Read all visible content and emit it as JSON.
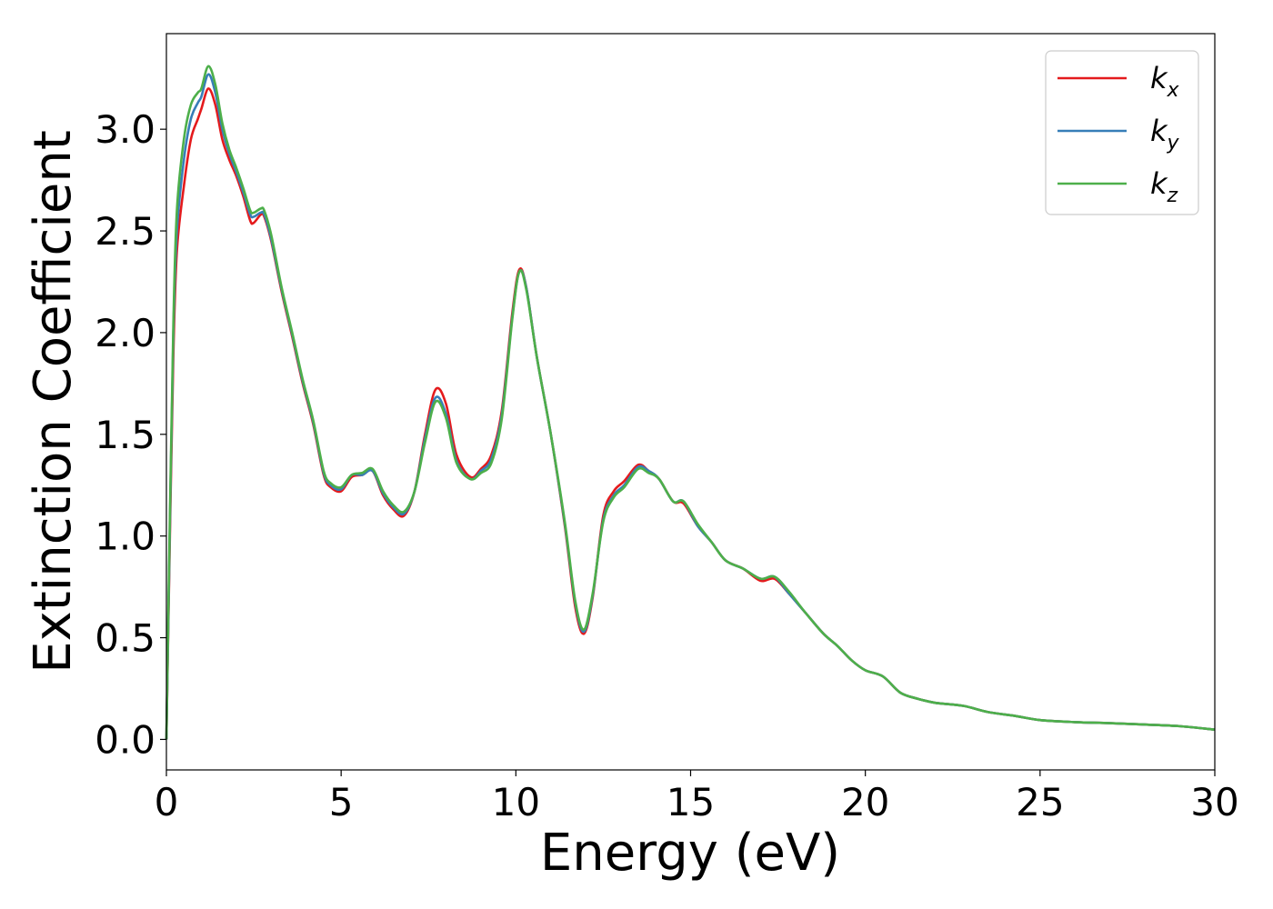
{
  "chart_data": {
    "type": "line",
    "xlabel": "Energy (eV)",
    "ylabel": "Extinction Coefficient",
    "xlim": [
      0,
      30
    ],
    "ylim": [
      -0.15,
      3.47
    ],
    "xticks": [
      0,
      5,
      10,
      15,
      20,
      25,
      30
    ],
    "xtick_labels": [
      "0",
      "5",
      "10",
      "15",
      "20",
      "25",
      "30"
    ],
    "yticks": [
      0.0,
      0.5,
      1.0,
      1.5,
      2.0,
      2.5,
      3.0
    ],
    "ytick_labels": [
      "0.0",
      "0.5",
      "1.0",
      "1.5",
      "2.0",
      "2.5",
      "3.0"
    ],
    "grid": false,
    "legend_position": "top-right",
    "series": [
      {
        "name": "k",
        "subscript": "x",
        "color": "#e41a1c",
        "points": [
          [
            0,
            0
          ],
          [
            0.1,
            1.0
          ],
          [
            0.2,
            1.9
          ],
          [
            0.3,
            2.4
          ],
          [
            0.5,
            2.72
          ],
          [
            0.7,
            2.95
          ],
          [
            0.9,
            3.05
          ],
          [
            1.0,
            3.1
          ],
          [
            1.2,
            3.2
          ],
          [
            1.4,
            3.12
          ],
          [
            1.6,
            2.95
          ],
          [
            1.8,
            2.85
          ],
          [
            2.0,
            2.77
          ],
          [
            2.2,
            2.67
          ],
          [
            2.4,
            2.55
          ],
          [
            2.5,
            2.54
          ],
          [
            2.7,
            2.58
          ],
          [
            2.8,
            2.57
          ],
          [
            3.0,
            2.45
          ],
          [
            3.3,
            2.2
          ],
          [
            3.6,
            1.98
          ],
          [
            3.9,
            1.75
          ],
          [
            4.2,
            1.55
          ],
          [
            4.5,
            1.3
          ],
          [
            4.7,
            1.24
          ],
          [
            5.0,
            1.22
          ],
          [
            5.3,
            1.29
          ],
          [
            5.6,
            1.3
          ],
          [
            5.9,
            1.32
          ],
          [
            6.2,
            1.2
          ],
          [
            6.5,
            1.13
          ],
          [
            6.8,
            1.1
          ],
          [
            7.1,
            1.22
          ],
          [
            7.4,
            1.5
          ],
          [
            7.7,
            1.72
          ],
          [
            8.0,
            1.65
          ],
          [
            8.3,
            1.4
          ],
          [
            8.7,
            1.29
          ],
          [
            9.0,
            1.33
          ],
          [
            9.3,
            1.4
          ],
          [
            9.6,
            1.62
          ],
          [
            9.9,
            2.1
          ],
          [
            10.1,
            2.31
          ],
          [
            10.3,
            2.22
          ],
          [
            10.6,
            1.88
          ],
          [
            11.0,
            1.5
          ],
          [
            11.4,
            1.05
          ],
          [
            11.7,
            0.65
          ],
          [
            11.95,
            0.52
          ],
          [
            12.2,
            0.7
          ],
          [
            12.5,
            1.1
          ],
          [
            12.8,
            1.22
          ],
          [
            13.1,
            1.27
          ],
          [
            13.5,
            1.35
          ],
          [
            13.8,
            1.32
          ],
          [
            14.1,
            1.28
          ],
          [
            14.5,
            1.17
          ],
          [
            14.8,
            1.16
          ],
          [
            15.2,
            1.05
          ],
          [
            15.6,
            0.97
          ],
          [
            16.0,
            0.88
          ],
          [
            16.5,
            0.84
          ],
          [
            17.0,
            0.78
          ],
          [
            17.4,
            0.79
          ],
          [
            17.8,
            0.72
          ],
          [
            18.3,
            0.62
          ],
          [
            18.8,
            0.52
          ],
          [
            19.2,
            0.46
          ],
          [
            19.6,
            0.39
          ],
          [
            20.0,
            0.34
          ],
          [
            20.5,
            0.31
          ],
          [
            21.0,
            0.23
          ],
          [
            21.5,
            0.2
          ],
          [
            22.0,
            0.18
          ],
          [
            22.8,
            0.165
          ],
          [
            23.5,
            0.135
          ],
          [
            24.3,
            0.115
          ],
          [
            25.0,
            0.095
          ],
          [
            26.0,
            0.085
          ],
          [
            27.0,
            0.08
          ],
          [
            28.0,
            0.073
          ],
          [
            29.0,
            0.065
          ],
          [
            30.0,
            0.048
          ]
        ]
      },
      {
        "name": "k",
        "subscript": "y",
        "color": "#377eb8",
        "points": [
          [
            0,
            0
          ],
          [
            0.1,
            1.05
          ],
          [
            0.2,
            2.0
          ],
          [
            0.3,
            2.5
          ],
          [
            0.5,
            2.85
          ],
          [
            0.7,
            3.05
          ],
          [
            0.9,
            3.13
          ],
          [
            1.0,
            3.16
          ],
          [
            1.2,
            3.27
          ],
          [
            1.4,
            3.18
          ],
          [
            1.6,
            3.0
          ],
          [
            1.8,
            2.88
          ],
          [
            2.0,
            2.79
          ],
          [
            2.2,
            2.69
          ],
          [
            2.4,
            2.58
          ],
          [
            2.5,
            2.57
          ],
          [
            2.7,
            2.59
          ],
          [
            2.8,
            2.58
          ],
          [
            3.0,
            2.46
          ],
          [
            3.3,
            2.21
          ],
          [
            3.6,
            1.99
          ],
          [
            3.9,
            1.76
          ],
          [
            4.2,
            1.56
          ],
          [
            4.5,
            1.31
          ],
          [
            4.7,
            1.25
          ],
          [
            5.0,
            1.23
          ],
          [
            5.3,
            1.3
          ],
          [
            5.6,
            1.3
          ],
          [
            5.9,
            1.32
          ],
          [
            6.2,
            1.21
          ],
          [
            6.5,
            1.14
          ],
          [
            6.8,
            1.11
          ],
          [
            7.1,
            1.22
          ],
          [
            7.4,
            1.48
          ],
          [
            7.7,
            1.68
          ],
          [
            8.0,
            1.6
          ],
          [
            8.3,
            1.37
          ],
          [
            8.7,
            1.28
          ],
          [
            9.0,
            1.32
          ],
          [
            9.3,
            1.38
          ],
          [
            9.6,
            1.6
          ],
          [
            9.9,
            2.08
          ],
          [
            10.1,
            2.3
          ],
          [
            10.3,
            2.22
          ],
          [
            10.6,
            1.88
          ],
          [
            11.0,
            1.5
          ],
          [
            11.4,
            1.06
          ],
          [
            11.7,
            0.67
          ],
          [
            11.95,
            0.53
          ],
          [
            12.2,
            0.71
          ],
          [
            12.5,
            1.08
          ],
          [
            12.8,
            1.2
          ],
          [
            13.1,
            1.25
          ],
          [
            13.5,
            1.34
          ],
          [
            13.8,
            1.32
          ],
          [
            14.1,
            1.28
          ],
          [
            14.5,
            1.17
          ],
          [
            14.8,
            1.17
          ],
          [
            15.2,
            1.05
          ],
          [
            15.6,
            0.97
          ],
          [
            16.0,
            0.88
          ],
          [
            16.5,
            0.84
          ],
          [
            17.0,
            0.79
          ],
          [
            17.4,
            0.8
          ],
          [
            17.8,
            0.72
          ],
          [
            18.3,
            0.62
          ],
          [
            18.8,
            0.52
          ],
          [
            19.2,
            0.46
          ],
          [
            19.6,
            0.39
          ],
          [
            20.0,
            0.34
          ],
          [
            20.5,
            0.31
          ],
          [
            21.0,
            0.23
          ],
          [
            21.5,
            0.2
          ],
          [
            22.0,
            0.18
          ],
          [
            22.8,
            0.165
          ],
          [
            23.5,
            0.135
          ],
          [
            24.3,
            0.115
          ],
          [
            25.0,
            0.095
          ],
          [
            26.0,
            0.085
          ],
          [
            27.0,
            0.08
          ],
          [
            28.0,
            0.073
          ],
          [
            29.0,
            0.065
          ],
          [
            30.0,
            0.048
          ]
        ]
      },
      {
        "name": "k",
        "subscript": "z",
        "color": "#4daf4a",
        "points": [
          [
            0,
            0
          ],
          [
            0.1,
            1.1
          ],
          [
            0.2,
            2.05
          ],
          [
            0.3,
            2.6
          ],
          [
            0.5,
            2.95
          ],
          [
            0.7,
            3.12
          ],
          [
            0.9,
            3.18
          ],
          [
            1.0,
            3.2
          ],
          [
            1.2,
            3.31
          ],
          [
            1.4,
            3.22
          ],
          [
            1.6,
            3.03
          ],
          [
            1.8,
            2.9
          ],
          [
            2.0,
            2.81
          ],
          [
            2.2,
            2.71
          ],
          [
            2.4,
            2.6
          ],
          [
            2.5,
            2.59
          ],
          [
            2.7,
            2.61
          ],
          [
            2.8,
            2.6
          ],
          [
            3.0,
            2.48
          ],
          [
            3.3,
            2.22
          ],
          [
            3.6,
            2.0
          ],
          [
            3.9,
            1.77
          ],
          [
            4.2,
            1.57
          ],
          [
            4.5,
            1.32
          ],
          [
            4.7,
            1.26
          ],
          [
            5.0,
            1.24
          ],
          [
            5.3,
            1.3
          ],
          [
            5.6,
            1.31
          ],
          [
            5.9,
            1.33
          ],
          [
            6.2,
            1.22
          ],
          [
            6.5,
            1.15
          ],
          [
            6.8,
            1.12
          ],
          [
            7.1,
            1.22
          ],
          [
            7.4,
            1.46
          ],
          [
            7.7,
            1.66
          ],
          [
            8.0,
            1.58
          ],
          [
            8.3,
            1.36
          ],
          [
            8.7,
            1.28
          ],
          [
            9.0,
            1.31
          ],
          [
            9.3,
            1.36
          ],
          [
            9.6,
            1.58
          ],
          [
            9.9,
            2.07
          ],
          [
            10.1,
            2.3
          ],
          [
            10.3,
            2.21
          ],
          [
            10.6,
            1.88
          ],
          [
            11.0,
            1.5
          ],
          [
            11.4,
            1.07
          ],
          [
            11.7,
            0.68
          ],
          [
            11.95,
            0.54
          ],
          [
            12.2,
            0.72
          ],
          [
            12.5,
            1.07
          ],
          [
            12.8,
            1.19
          ],
          [
            13.1,
            1.24
          ],
          [
            13.5,
            1.33
          ],
          [
            13.8,
            1.31
          ],
          [
            14.1,
            1.28
          ],
          [
            14.5,
            1.17
          ],
          [
            14.8,
            1.17
          ],
          [
            15.2,
            1.06
          ],
          [
            15.6,
            0.97
          ],
          [
            16.0,
            0.88
          ],
          [
            16.5,
            0.84
          ],
          [
            17.0,
            0.79
          ],
          [
            17.4,
            0.8
          ],
          [
            17.8,
            0.73
          ],
          [
            18.3,
            0.62
          ],
          [
            18.8,
            0.52
          ],
          [
            19.2,
            0.46
          ],
          [
            19.6,
            0.39
          ],
          [
            20.0,
            0.34
          ],
          [
            20.5,
            0.31
          ],
          [
            21.0,
            0.23
          ],
          [
            21.5,
            0.2
          ],
          [
            22.0,
            0.18
          ],
          [
            22.8,
            0.165
          ],
          [
            23.5,
            0.135
          ],
          [
            24.3,
            0.115
          ],
          [
            25.0,
            0.095
          ],
          [
            26.0,
            0.085
          ],
          [
            27.0,
            0.08
          ],
          [
            28.0,
            0.073
          ],
          [
            29.0,
            0.065
          ],
          [
            30.0,
            0.048
          ]
        ]
      }
    ]
  }
}
